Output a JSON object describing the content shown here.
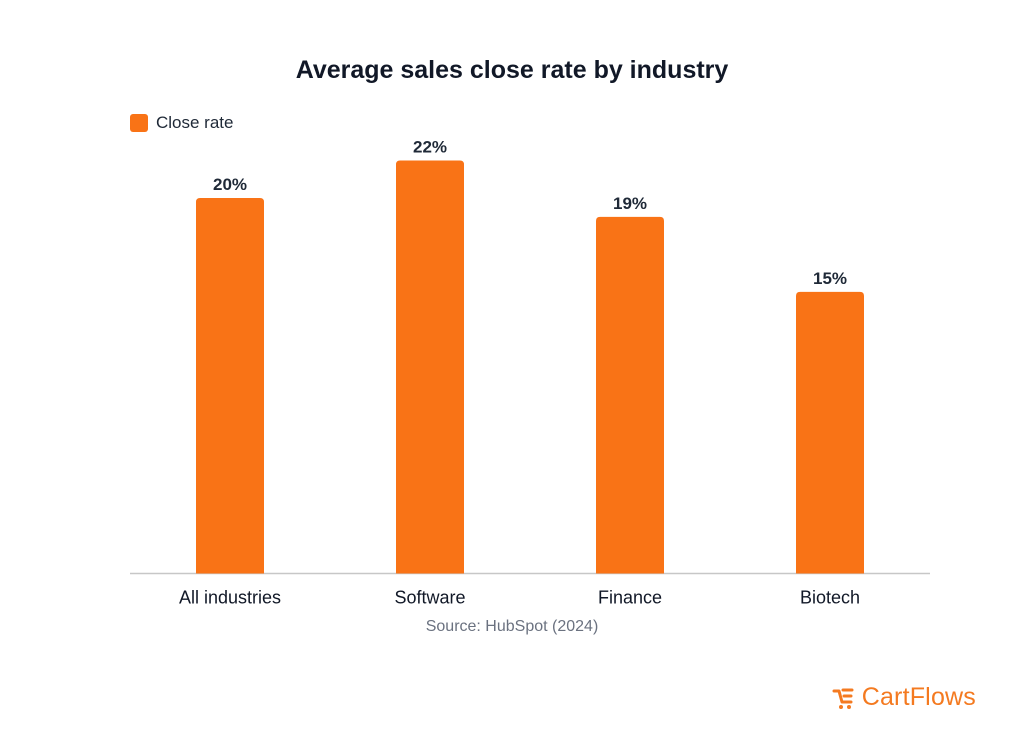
{
  "colors": {
    "bar": "#f97316",
    "axis": "#c7c7c7",
    "brand": "#f47a20"
  },
  "chart_data": {
    "type": "bar",
    "title": "Average sales close rate by industry",
    "categories": [
      "All industries",
      "Software",
      "Finance",
      "Biotech"
    ],
    "series": [
      {
        "name": "Close rate",
        "values": [
          20,
          22,
          19,
          15
        ]
      }
    ],
    "data_labels": [
      "20%",
      "22%",
      "19%",
      "15%"
    ],
    "value_unit": "%",
    "ylim": [
      0,
      22
    ],
    "grid": false,
    "legend_position": "top-left",
    "source": "Source: HubSpot (2024)"
  },
  "brand": {
    "name": "CartFlows",
    "icon": "cartflows-logo-icon"
  }
}
